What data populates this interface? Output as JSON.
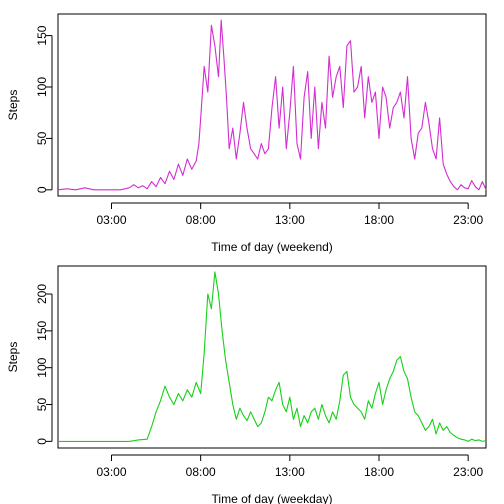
{
  "chart_data": [
    {
      "type": "line",
      "xlabel": "Time of day (weekend)",
      "ylabel": "Steps",
      "x_ticks": [
        "03:00",
        "08:00",
        "13:00",
        "18:00",
        "23:00"
      ],
      "y_ticks": [
        0,
        50,
        100,
        150
      ],
      "xlim": [
        0,
        24
      ],
      "ylim": [
        -6,
        171
      ],
      "color": "#d22dd2",
      "x": [
        0.0,
        0.5,
        1.0,
        1.5,
        2.0,
        2.5,
        3.0,
        3.5,
        4.0,
        4.25,
        4.5,
        4.75,
        5.0,
        5.25,
        5.5,
        5.75,
        6.0,
        6.25,
        6.5,
        6.75,
        7.0,
        7.25,
        7.5,
        7.75,
        7.9,
        8.0,
        8.2,
        8.4,
        8.6,
        8.8,
        9.0,
        9.15,
        9.3,
        9.45,
        9.6,
        9.8,
        10.0,
        10.2,
        10.4,
        10.6,
        10.8,
        11.0,
        11.2,
        11.4,
        11.6,
        11.8,
        12.0,
        12.2,
        12.4,
        12.6,
        12.8,
        13.0,
        13.2,
        13.4,
        13.6,
        13.8,
        14.0,
        14.2,
        14.4,
        14.6,
        14.8,
        15.0,
        15.2,
        15.4,
        15.6,
        15.8,
        16.0,
        16.2,
        16.4,
        16.6,
        16.8,
        17.0,
        17.2,
        17.4,
        17.6,
        17.8,
        18.0,
        18.2,
        18.4,
        18.6,
        18.8,
        19.0,
        19.2,
        19.4,
        19.6,
        19.8,
        20.0,
        20.2,
        20.4,
        20.6,
        20.8,
        21.0,
        21.2,
        21.4,
        21.6,
        21.8,
        22.0,
        22.2,
        22.4,
        22.6,
        22.8,
        23.0,
        23.2,
        23.4,
        23.6,
        23.8,
        24.0
      ],
      "values": [
        0,
        1,
        0,
        2,
        0,
        0,
        0,
        0,
        2,
        5,
        2,
        4,
        1,
        8,
        3,
        12,
        6,
        18,
        10,
        25,
        14,
        30,
        20,
        28,
        45,
        70,
        120,
        95,
        160,
        140,
        110,
        165,
        130,
        90,
        40,
        60,
        30,
        55,
        85,
        60,
        40,
        35,
        30,
        45,
        35,
        40,
        80,
        110,
        60,
        100,
        40,
        75,
        120,
        45,
        30,
        90,
        115,
        50,
        100,
        40,
        85,
        60,
        130,
        90,
        110,
        120,
        80,
        140,
        145,
        95,
        100,
        120,
        70,
        110,
        85,
        95,
        50,
        100,
        90,
        60,
        80,
        85,
        95,
        70,
        110,
        50,
        30,
        55,
        60,
        85,
        65,
        40,
        30,
        70,
        25,
        15,
        8,
        3,
        0,
        5,
        2,
        1,
        9,
        3,
        0,
        8,
        0
      ]
    },
    {
      "type": "line",
      "xlabel": "Time of day (weekday)",
      "ylabel": "Steps",
      "x_ticks": [
        "03:00",
        "08:00",
        "13:00",
        "18:00",
        "23:00"
      ],
      "y_ticks": [
        0,
        50,
        100,
        150,
        200
      ],
      "xlim": [
        0,
        24
      ],
      "ylim": [
        -9,
        238
      ],
      "color": "#16d116",
      "x": [
        0.0,
        0.5,
        1.0,
        1.5,
        2.0,
        2.5,
        3.0,
        3.5,
        4.0,
        4.5,
        5.0,
        5.25,
        5.5,
        5.75,
        6.0,
        6.25,
        6.5,
        6.75,
        7.0,
        7.25,
        7.5,
        7.75,
        8.0,
        8.2,
        8.4,
        8.6,
        8.8,
        9.0,
        9.2,
        9.4,
        9.6,
        9.8,
        10.0,
        10.2,
        10.4,
        10.6,
        10.8,
        11.0,
        11.2,
        11.4,
        11.6,
        11.8,
        12.0,
        12.2,
        12.4,
        12.6,
        12.8,
        13.0,
        13.2,
        13.4,
        13.6,
        13.8,
        14.0,
        14.2,
        14.4,
        14.6,
        14.8,
        15.0,
        15.2,
        15.4,
        15.6,
        15.8,
        16.0,
        16.2,
        16.4,
        16.6,
        16.8,
        17.0,
        17.2,
        17.4,
        17.6,
        17.8,
        18.0,
        18.2,
        18.4,
        18.6,
        18.8,
        19.0,
        19.2,
        19.4,
        19.6,
        19.8,
        20.0,
        20.2,
        20.4,
        20.6,
        20.8,
        21.0,
        21.2,
        21.4,
        21.6,
        21.8,
        22.0,
        22.2,
        22.4,
        22.6,
        22.8,
        23.0,
        23.2,
        23.4,
        23.6,
        23.8,
        24.0
      ],
      "values": [
        0,
        0,
        0,
        0,
        0,
        0,
        0,
        0,
        0,
        2,
        3,
        20,
        40,
        55,
        75,
        60,
        50,
        65,
        55,
        70,
        60,
        80,
        65,
        120,
        200,
        180,
        230,
        200,
        150,
        110,
        80,
        50,
        30,
        45,
        35,
        28,
        40,
        30,
        20,
        25,
        40,
        60,
        55,
        70,
        80,
        50,
        40,
        60,
        30,
        45,
        20,
        35,
        25,
        40,
        45,
        30,
        50,
        35,
        25,
        40,
        30,
        55,
        90,
        95,
        60,
        50,
        45,
        40,
        30,
        55,
        45,
        65,
        80,
        50,
        70,
        85,
        95,
        110,
        115,
        95,
        85,
        60,
        40,
        35,
        25,
        15,
        20,
        30,
        10,
        25,
        15,
        20,
        12,
        8,
        5,
        3,
        2,
        0,
        3,
        1,
        2,
        0,
        1
      ]
    }
  ]
}
